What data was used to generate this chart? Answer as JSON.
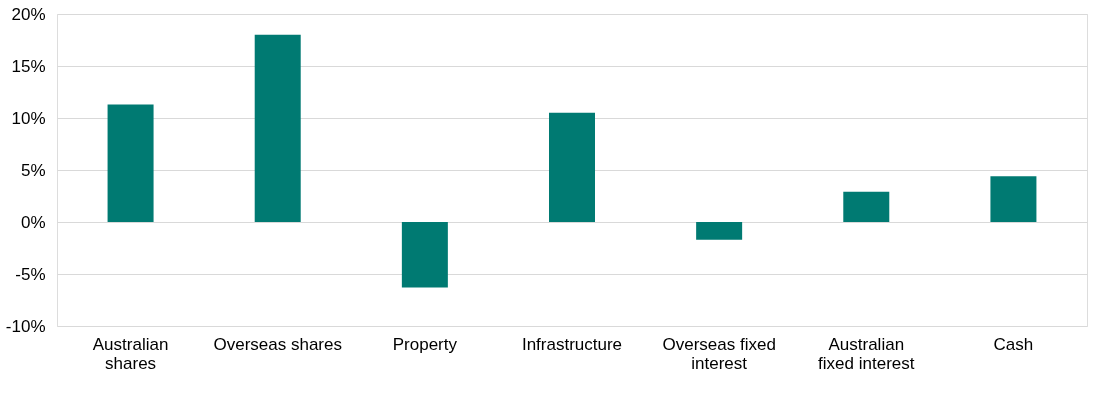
{
  "chart_data": {
    "type": "bar",
    "categories": [
      "Australian shares",
      "Overseas shares",
      "Property",
      "Infrastructure",
      "Overseas fixed interest",
      "Australian fixed interest",
      "Cash"
    ],
    "values": [
      11.3,
      18.0,
      -6.3,
      10.5,
      -1.7,
      2.9,
      4.4
    ],
    "color": "#007a72",
    "ylim": [
      -10,
      20
    ],
    "yticks": [
      {
        "value": -10,
        "label": "-10%"
      },
      {
        "value": -5,
        "label": "-5%"
      },
      {
        "value": 0,
        "label": "0%"
      },
      {
        "value": 5,
        "label": "5%"
      },
      {
        "value": 10,
        "label": "10%"
      },
      {
        "value": 15,
        "label": "15%"
      },
      {
        "value": 20,
        "label": "20%"
      }
    ],
    "grid": "y"
  }
}
